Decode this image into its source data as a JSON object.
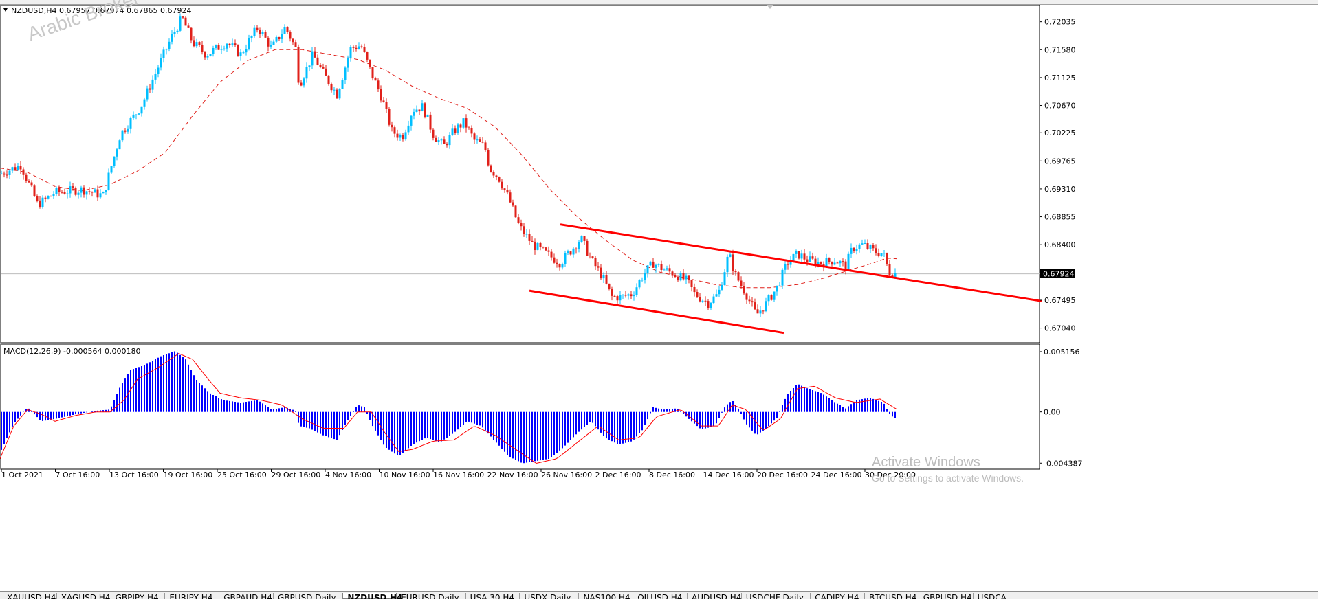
{
  "window": {
    "title": "NZDUSD,H4",
    "header_prices": [
      "0.67957",
      "0.67974",
      "0.67865",
      "0.67924"
    ],
    "watermark_logo": "Arabic Broker"
  },
  "activation": {
    "title": "Activate Windows",
    "subtitle": "Go to Settings to activate Windows."
  },
  "tabs": [
    {
      "label": "XAUUSD,H4",
      "active": false
    },
    {
      "label": "XAGUSD,H4",
      "active": false
    },
    {
      "label": "GBPJPY,H4",
      "active": false
    },
    {
      "label": "EURJPY,H4",
      "active": false
    },
    {
      "label": "GBPAUD,H4",
      "active": false
    },
    {
      "label": "GBPUSD,Daily",
      "active": false
    },
    {
      "label": "NZDUSD,H4",
      "active": true
    },
    {
      "label": "EURUSD,Daily",
      "active": false
    },
    {
      "label": "USA 30,H4",
      "active": false
    },
    {
      "label": "USDX,Daily",
      "active": false
    },
    {
      "label": "NAS100,H4",
      "active": false
    },
    {
      "label": "OILUSD,H4",
      "active": false
    },
    {
      "label": "AUDUSD,H4",
      "active": false
    },
    {
      "label": "USDCHF,Daily",
      "active": false
    },
    {
      "label": "CADJPY,H4",
      "active": false
    },
    {
      "label": "BTCUSD,H4",
      "active": false
    },
    {
      "label": "GBPUSD,H4",
      "active": false
    },
    {
      "label": "USDCA...",
      "active": false
    }
  ],
  "chart_data": [
    {
      "type": "candlestick",
      "symbol": "NZDUSD",
      "timeframe": "H4",
      "ylim": [
        0.668,
        0.723
      ],
      "y_ticks": [
        "0.72035",
        "0.71580",
        "0.71125",
        "0.70670",
        "0.70225",
        "0.69765",
        "0.69310",
        "0.68855",
        "0.68400",
        "0.67495",
        "0.67040"
      ],
      "current_price": "0.67924",
      "x_tick_labels": [
        "1 Oct 2021",
        "7 Oct 16:00",
        "13 Oct 16:00",
        "19 Oct 16:00",
        "25 Oct 16:00",
        "29 Oct 16:00",
        "4 Nov 16:00",
        "10 Nov 16:00",
        "16 Nov 16:00",
        "22 Nov 16:00",
        "26 Nov 16:00",
        "2 Dec 16:00",
        "8 Dec 16:00",
        "14 Dec 16:00",
        "20 Dec 16:00",
        "24 Dec 16:00",
        "30 Dec 20:00"
      ],
      "close_path": [
        [
          0,
          0.6955
        ],
        [
          30,
          0.697
        ],
        [
          55,
          0.6905
        ],
        [
          80,
          0.6925
        ],
        [
          120,
          0.693
        ],
        [
          150,
          0.692
        ],
        [
          175,
          0.702
        ],
        [
          205,
          0.7065
        ],
        [
          230,
          0.713
        ],
        [
          250,
          0.718
        ],
        [
          265,
          0.721
        ],
        [
          280,
          0.717
        ],
        [
          300,
          0.715
        ],
        [
          330,
          0.717
        ],
        [
          350,
          0.715
        ],
        [
          375,
          0.7195
        ],
        [
          395,
          0.716
        ],
        [
          415,
          0.7195
        ],
        [
          430,
          0.716
        ],
        [
          435,
          0.71
        ],
        [
          455,
          0.715
        ],
        [
          470,
          0.712
        ],
        [
          490,
          0.7085
        ],
        [
          510,
          0.716
        ],
        [
          525,
          0.7165
        ],
        [
          540,
          0.712
        ],
        [
          555,
          0.708
        ],
        [
          570,
          0.7025
        ],
        [
          585,
          0.7015
        ],
        [
          600,
          0.706
        ],
        [
          615,
          0.7065
        ],
        [
          630,
          0.702
        ],
        [
          645,
          0.7
        ],
        [
          660,
          0.7025
        ],
        [
          675,
          0.704
        ],
        [
          690,
          0.701
        ],
        [
          705,
          0.7
        ],
        [
          712,
          0.6965
        ],
        [
          725,
          0.695
        ],
        [
          740,
          0.6915
        ],
        [
          755,
          0.687
        ],
        [
          775,
          0.684
        ],
        [
          795,
          0.6825
        ],
        [
          815,
          0.681
        ],
        [
          830,
          0.683
        ],
        [
          845,
          0.685
        ],
        [
          860,
          0.6815
        ],
        [
          875,
          0.679
        ],
        [
          890,
          0.6755
        ],
        [
          905,
          0.6755
        ],
        [
          920,
          0.676
        ],
        [
          935,
          0.679
        ],
        [
          950,
          0.681
        ],
        [
          965,
          0.68
        ],
        [
          985,
          0.679
        ],
        [
          1000,
          0.678
        ],
        [
          1010,
          0.676
        ],
        [
          1030,
          0.6745
        ],
        [
          1045,
          0.676
        ],
        [
          1060,
          0.6825
        ],
        [
          1070,
          0.679
        ],
        [
          1085,
          0.676
        ],
        [
          1100,
          0.6725
        ],
        [
          1115,
          0.6745
        ],
        [
          1130,
          0.677
        ],
        [
          1145,
          0.681
        ],
        [
          1160,
          0.6825
        ],
        [
          1175,
          0.6815
        ],
        [
          1195,
          0.681
        ],
        [
          1215,
          0.6815
        ],
        [
          1230,
          0.6805
        ],
        [
          1240,
          0.6835
        ],
        [
          1255,
          0.684
        ],
        [
          1270,
          0.683
        ],
        [
          1285,
          0.6825
        ],
        [
          1293,
          0.6795
        ],
        [
          1305,
          0.6793
        ]
      ],
      "ma_path": [
        [
          0,
          0.6965
        ],
        [
          40,
          0.6958
        ],
        [
          80,
          0.6935
        ],
        [
          120,
          0.6928
        ],
        [
          160,
          0.6938
        ],
        [
          200,
          0.696
        ],
        [
          240,
          0.699
        ],
        [
          280,
          0.705
        ],
        [
          320,
          0.7105
        ],
        [
          360,
          0.714
        ],
        [
          400,
          0.7158
        ],
        [
          440,
          0.7158
        ],
        [
          480,
          0.715
        ],
        [
          520,
          0.7142
        ],
        [
          560,
          0.7125
        ],
        [
          600,
          0.7098
        ],
        [
          640,
          0.7078
        ],
        [
          680,
          0.7062
        ],
        [
          720,
          0.7032
        ],
        [
          760,
          0.6985
        ],
        [
          800,
          0.693
        ],
        [
          840,
          0.6885
        ],
        [
          880,
          0.6848
        ],
        [
          920,
          0.6815
        ],
        [
          960,
          0.6795
        ],
        [
          1000,
          0.6785
        ],
        [
          1040,
          0.6775
        ],
        [
          1080,
          0.677
        ],
        [
          1120,
          0.677
        ],
        [
          1160,
          0.6775
        ],
        [
          1200,
          0.6786
        ],
        [
          1240,
          0.68
        ],
        [
          1270,
          0.681
        ],
        [
          1290,
          0.6818
        ],
        [
          1305,
          0.6817
        ]
      ],
      "trendlines": [
        {
          "name": "upper channel",
          "from": [
            815,
            0.6873
          ],
          "to": [
            1515,
            0.6748
          ]
        },
        {
          "name": "lower channel",
          "from": [
            770,
            0.6765
          ],
          "to": [
            1140,
            0.6696
          ]
        }
      ],
      "colors": {
        "up": "#00bfff",
        "down": "#e0201a",
        "ma": "#e0201a",
        "trendline": "#ff0000",
        "price_line": "#bdbdbd"
      }
    },
    {
      "type": "bar",
      "indicator": "MACD",
      "title": "MACD(12,26,9) -0.000564 0.000180",
      "ylim": [
        -0.0049,
        0.0058
      ],
      "y_ticks": [
        "0.005156",
        "0.00",
        "-0.004387"
      ],
      "histogram_path": [
        [
          0,
          -0.0035
        ],
        [
          20,
          -0.001
        ],
        [
          40,
          0.0004
        ],
        [
          60,
          -0.0008
        ],
        [
          80,
          -0.0006
        ],
        [
          110,
          -0.0002
        ],
        [
          140,
          0.0001
        ],
        [
          160,
          0.0002
        ],
        [
          175,
          0.0022
        ],
        [
          190,
          0.0036
        ],
        [
          210,
          0.004
        ],
        [
          235,
          0.0048
        ],
        [
          255,
          0.0052
        ],
        [
          270,
          0.0045
        ],
        [
          285,
          0.0028
        ],
        [
          305,
          0.0016
        ],
        [
          325,
          0.001
        ],
        [
          350,
          0.0008
        ],
        [
          375,
          0.001
        ],
        [
          395,
          0.0002
        ],
        [
          415,
          0.0004
        ],
        [
          430,
          0.0001
        ],
        [
          435,
          -0.0012
        ],
        [
          450,
          -0.0014
        ],
        [
          470,
          -0.002
        ],
        [
          490,
          -0.0024
        ],
        [
          505,
          -0.0008
        ],
        [
          520,
          0.0006
        ],
        [
          530,
          0.0004
        ],
        [
          540,
          -0.001
        ],
        [
          560,
          -0.003
        ],
        [
          580,
          -0.0038
        ],
        [
          600,
          -0.0028
        ],
        [
          620,
          -0.0022
        ],
        [
          640,
          -0.0026
        ],
        [
          660,
          -0.0018
        ],
        [
          680,
          -0.0008
        ],
        [
          700,
          -0.0012
        ],
        [
          720,
          -0.0025
        ],
        [
          740,
          -0.0038
        ],
        [
          760,
          -0.0044
        ],
        [
          780,
          -0.0042
        ],
        [
          800,
          -0.004
        ],
        [
          820,
          -0.003
        ],
        [
          840,
          -0.0018
        ],
        [
          860,
          -0.0008
        ],
        [
          880,
          -0.0022
        ],
        [
          900,
          -0.0028
        ],
        [
          920,
          -0.0025
        ],
        [
          935,
          -0.0015
        ],
        [
          950,
          0.0004
        ],
        [
          965,
          0.0002
        ],
        [
          985,
          0.0003
        ],
        [
          1000,
          -0.0005
        ],
        [
          1020,
          -0.0015
        ],
        [
          1040,
          -0.0012
        ],
        [
          1055,
          0.0005
        ],
        [
          1065,
          0.001
        ],
        [
          1075,
          0.0002
        ],
        [
          1085,
          -0.001
        ],
        [
          1100,
          -0.002
        ],
        [
          1115,
          -0.0014
        ],
        [
          1130,
          -0.0005
        ],
        [
          1145,
          0.0015
        ],
        [
          1160,
          0.0024
        ],
        [
          1175,
          0.002
        ],
        [
          1195,
          0.0016
        ],
        [
          1215,
          0.0008
        ],
        [
          1230,
          0.0003
        ],
        [
          1245,
          0.001
        ],
        [
          1265,
          0.0012
        ],
        [
          1285,
          0.0008
        ],
        [
          1295,
          -0.0003
        ],
        [
          1305,
          -0.0006
        ]
      ],
      "signal_path": [
        [
          0,
          -0.004
        ],
        [
          20,
          -0.0012
        ],
        [
          40,
          0.0002
        ],
        [
          60,
          -0.0002
        ],
        [
          80,
          -0.0008
        ],
        [
          110,
          -0.0003
        ],
        [
          140,
          0.0
        ],
        [
          160,
          0.0
        ],
        [
          180,
          0.001
        ],
        [
          200,
          0.0028
        ],
        [
          230,
          0.0038
        ],
        [
          260,
          0.005
        ],
        [
          280,
          0.0045
        ],
        [
          300,
          0.003
        ],
        [
          320,
          0.0016
        ],
        [
          350,
          0.0012
        ],
        [
          380,
          0.001
        ],
        [
          410,
          0.0006
        ],
        [
          440,
          -0.0006
        ],
        [
          470,
          -0.0014
        ],
        [
          500,
          -0.0014
        ],
        [
          520,
          0.0
        ],
        [
          540,
          0.0
        ],
        [
          560,
          -0.0018
        ],
        [
          580,
          -0.0034
        ],
        [
          600,
          -0.0032
        ],
        [
          630,
          -0.0025
        ],
        [
          660,
          -0.0024
        ],
        [
          690,
          -0.0012
        ],
        [
          720,
          -0.002
        ],
        [
          750,
          -0.0032
        ],
        [
          780,
          -0.0044
        ],
        [
          810,
          -0.004
        ],
        [
          840,
          -0.0026
        ],
        [
          870,
          -0.0012
        ],
        [
          900,
          -0.0024
        ],
        [
          930,
          -0.0022
        ],
        [
          955,
          -0.0004
        ],
        [
          990,
          0.0002
        ],
        [
          1020,
          -0.0012
        ],
        [
          1045,
          -0.0012
        ],
        [
          1065,
          0.0006
        ],
        [
          1085,
          0.0002
        ],
        [
          1110,
          -0.0016
        ],
        [
          1135,
          -0.0006
        ],
        [
          1160,
          0.002
        ],
        [
          1185,
          0.0022
        ],
        [
          1215,
          0.0012
        ],
        [
          1245,
          0.0008
        ],
        [
          1280,
          0.0011
        ],
        [
          1305,
          0.0002
        ]
      ],
      "colors": {
        "histogram": "#0000ff",
        "signal": "#ff0000"
      }
    }
  ]
}
